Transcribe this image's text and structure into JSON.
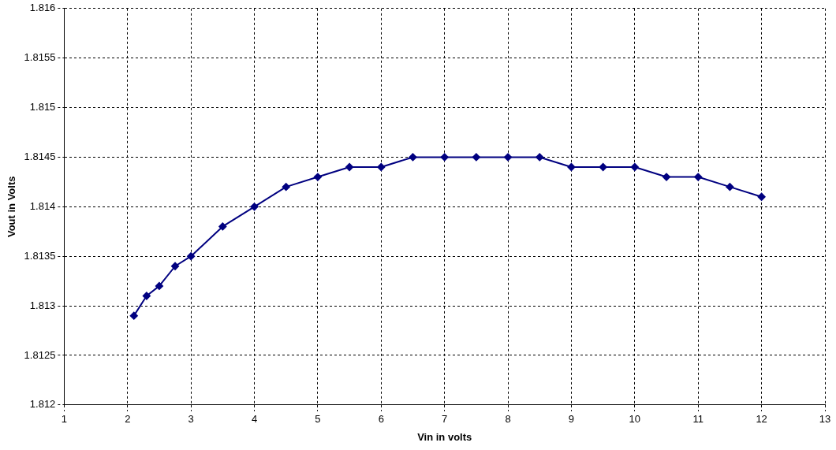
{
  "chart_data": {
    "type": "line",
    "xlabel": "Vin in volts",
    "ylabel": "Vout in Volts",
    "x": [
      2.1,
      2.3,
      2.5,
      2.75,
      3,
      3.5,
      4,
      4.5,
      5,
      5.5,
      6,
      6.5,
      7,
      7.5,
      8,
      8.5,
      9,
      9.5,
      10,
      10.5,
      11,
      11.5,
      12
    ],
    "series": [
      {
        "color": "#000080",
        "values": [
          1.8129,
          1.8131,
          1.8132,
          1.8134,
          1.8135,
          1.8138,
          1.814,
          1.8142,
          1.8143,
          1.8144,
          1.8144,
          1.8145,
          1.8145,
          1.8145,
          1.8145,
          1.8145,
          1.8144,
          1.8144,
          1.8144,
          1.8143,
          1.8143,
          1.8142,
          1.8141
        ]
      }
    ],
    "xlim": [
      1,
      13
    ],
    "xticks": [
      1,
      2,
      3,
      4,
      5,
      6,
      7,
      8,
      9,
      10,
      11,
      12,
      13
    ],
    "ylim": [
      1.812,
      1.816
    ],
    "yticks": [
      1.812,
      1.8125,
      1.813,
      1.8135,
      1.814,
      1.8145,
      1.815,
      1.8155,
      1.816
    ],
    "grid": true,
    "legend": false,
    "marker": "diamond",
    "line_style": "solid"
  }
}
